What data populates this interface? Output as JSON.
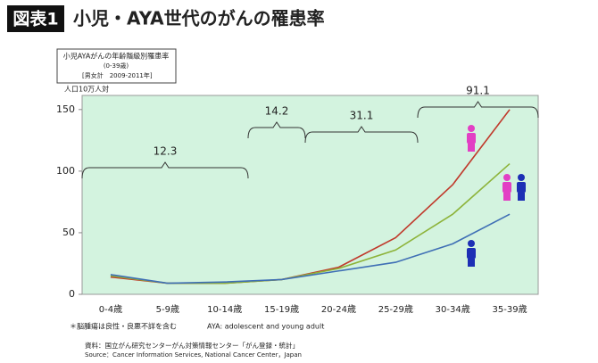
{
  "header": {
    "label": "図表1",
    "title": "小児・AYA世代のがんの罹患率"
  },
  "chart_data": {
    "type": "line",
    "title": "小児AYAがんの年齢階級別罹患率",
    "subtitle": "(0-39歳)",
    "period": "[男女計　2009-2011年]",
    "y_label": "人口10万人対",
    "categories": [
      "0-4歳",
      "5-9歳",
      "10-14歳",
      "15-19歳",
      "20-24歳",
      "25-29歳",
      "30-34歳",
      "35-39歳"
    ],
    "series": [
      {
        "color": "#c0392b",
        "values": [
          14,
          9,
          9,
          12,
          22,
          46,
          89,
          150
        ]
      },
      {
        "color": "#8db33a",
        "values": [
          15,
          9,
          9,
          12,
          21,
          36,
          65,
          106
        ]
      },
      {
        "color": "#3f6fb5",
        "values": [
          16,
          9,
          10,
          12,
          19,
          26,
          41,
          65
        ]
      }
    ],
    "annotations": [
      12.3,
      14.2,
      31.1,
      91.1
    ],
    "ylim": [
      0,
      160
    ],
    "yticks": [
      0,
      50,
      100,
      150
    ],
    "grid": false,
    "background": "#d3f3df"
  },
  "footnotes": {
    "note": "＊脳腫瘍は良性・良悪不詳を含む",
    "aya": "AYA: adolescent and young adult",
    "source_ja": "資料：国立がん研究センターがん対策情報センター「がん登録・統計」",
    "source_en": "Source：Cancer Information Services, National Cancer Center，Japan"
  }
}
